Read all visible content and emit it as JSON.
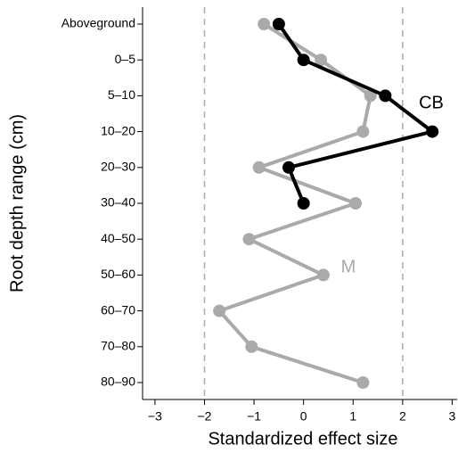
{
  "chart_data": {
    "type": "line",
    "xlabel": "Standardized effect size",
    "ylabel": "Root depth range (cm)",
    "categories": [
      "Aboveground",
      "0–5",
      "5–10",
      "10–20",
      "20–30",
      "30–40",
      "40–50",
      "50–60",
      "60–70",
      "70–80",
      "80–90"
    ],
    "series": [
      {
        "name": "M",
        "color": "#aaaaaa",
        "values": [
          -0.8,
          0.35,
          1.35,
          1.2,
          -0.9,
          1.05,
          -1.1,
          0.4,
          -1.7,
          -1.05,
          1.2
        ]
      },
      {
        "name": "CB",
        "color": "#000000",
        "values": [
          -0.5,
          0,
          1.65,
          2.6,
          -0.3,
          0,
          null,
          null,
          null,
          null,
          null
        ]
      }
    ],
    "xlim": [
      -3.25,
      3.1
    ],
    "xticks": [
      {
        "value": -3,
        "label": "−3"
      },
      {
        "value": -2,
        "label": "−2"
      },
      {
        "value": -1,
        "label": "−1"
      },
      0,
      1,
      2,
      3
    ],
    "reference_lines": [
      -2,
      2
    ]
  }
}
